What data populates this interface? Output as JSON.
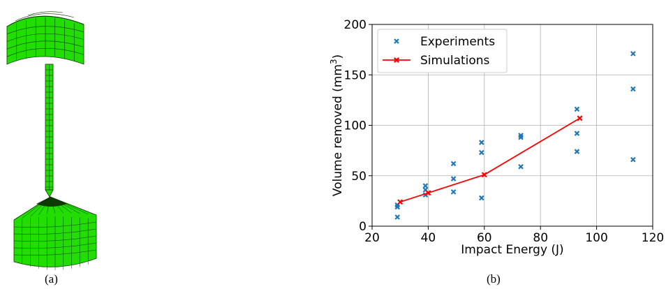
{
  "captions": {
    "a": "(a)",
    "b": "(b)"
  },
  "colors": {
    "mesh": "#22dd00",
    "mesh_line": "#0a3a00",
    "experiments": "#1f77b4",
    "simulations": "#ff0000"
  },
  "chart_data": {
    "type": "scatter",
    "xlabel": "Impact Energy (J)",
    "ylabel_main": "Volume removed (mm",
    "ylabel_sup": "3",
    "ylabel_close": ")",
    "xlim": [
      20,
      120
    ],
    "ylim": [
      0,
      200
    ],
    "xticks": [
      20,
      40,
      60,
      80,
      100,
      120
    ],
    "yticks": [
      0,
      50,
      100,
      150,
      200
    ],
    "grid": true,
    "legend_position": "top-left",
    "series": [
      {
        "name": "Experiments",
        "kind": "markers",
        "marker": "x",
        "points": [
          [
            29,
            21
          ],
          [
            29,
            19
          ],
          [
            29,
            9
          ],
          [
            39,
            40
          ],
          [
            39,
            36
          ],
          [
            39,
            31
          ],
          [
            49,
            62
          ],
          [
            49,
            47
          ],
          [
            49,
            34
          ],
          [
            59,
            83
          ],
          [
            59,
            73
          ],
          [
            59,
            28
          ],
          [
            73,
            90
          ],
          [
            73,
            88
          ],
          [
            73,
            59
          ],
          [
            93,
            116
          ],
          [
            93,
            92
          ],
          [
            93,
            74
          ],
          [
            113,
            171
          ],
          [
            113,
            136
          ],
          [
            113,
            66
          ]
        ]
      },
      {
        "name": "Simulations",
        "kind": "line",
        "marker": "x",
        "points": [
          [
            30,
            24
          ],
          [
            40,
            33
          ],
          [
            60,
            51
          ],
          [
            94,
            107
          ]
        ]
      }
    ]
  }
}
